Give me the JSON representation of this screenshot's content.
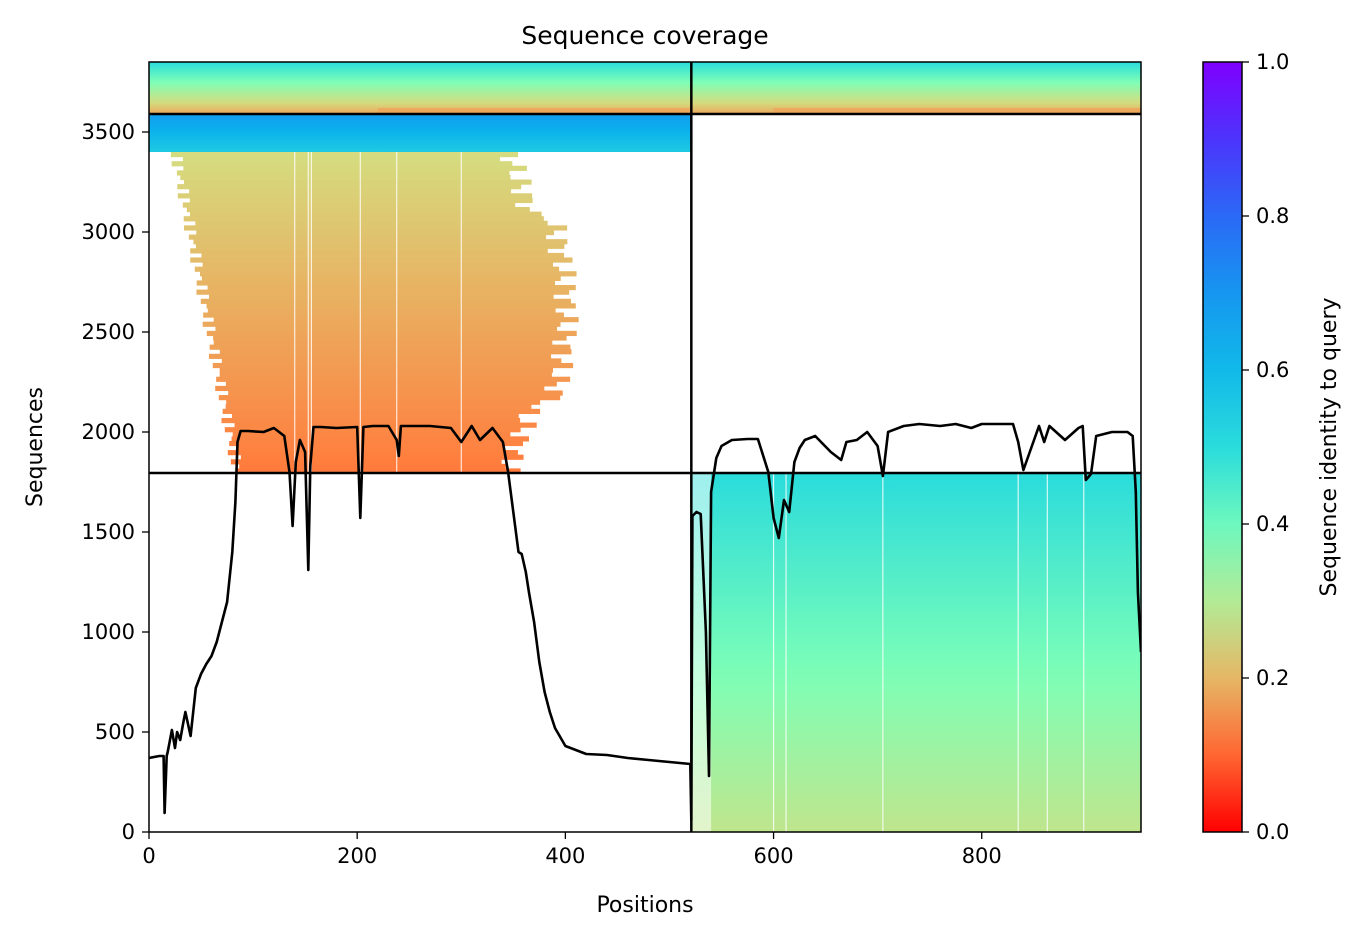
{
  "chart_data": {
    "type": "heatmap",
    "title": "Sequence coverage",
    "xlabel": "Positions",
    "ylabel": "Sequences",
    "xlim": [
      0,
      953
    ],
    "ylim": [
      0,
      3850
    ],
    "xticks": [
      0,
      200,
      400,
      600,
      800
    ],
    "yticks": [
      0,
      500,
      1000,
      1500,
      2000,
      2500,
      3000,
      3500
    ],
    "grid": false,
    "colorbar": {
      "label": "Sequence identity to query",
      "range": [
        0,
        1
      ],
      "ticks": [
        "0.0",
        "0.2",
        "0.4",
        "0.6",
        "0.8",
        "1.0"
      ],
      "colormap": "rainbow",
      "stops": [
        "#ff0000",
        "#ff7f3f",
        "#d4dd80",
        "#7effb6",
        "#2adcdc",
        "#0bb0ec",
        "#1e84f3",
        "#3f41fb",
        "#7f00ff"
      ]
    },
    "domain_boundary_position": 521,
    "chain_separators_sequences": [
      1795,
      3590
    ],
    "blocks": [
      {
        "x": [
          0,
          521
        ],
        "y": [
          3590,
          3850
        ],
        "identity_range": [
          0.15,
          0.5
        ],
        "description": "top-left band"
      },
      {
        "x": [
          521,
          953
        ],
        "y": [
          3590,
          3850
        ],
        "identity_range": [
          0.15,
          0.5
        ],
        "description": "top-right band"
      },
      {
        "x": [
          0,
          521
        ],
        "y": [
          3400,
          3590
        ],
        "identity_range": [
          0.55,
          0.7
        ],
        "description": "cyan band"
      },
      {
        "x": [
          20,
          521
        ],
        "y": [
          1795,
          3400
        ],
        "identity_range": [
          0.1,
          0.28
        ],
        "description": "left domain alignments"
      },
      {
        "x": [
          521,
          953
        ],
        "y": [
          0,
          1795
        ],
        "identity_range": [
          0.28,
          0.5
        ],
        "description": "right domain alignments"
      }
    ],
    "series": [
      {
        "color": "#000000",
        "x": [
          0,
          10,
          14,
          15,
          17,
          18,
          22,
          25,
          27,
          30,
          33,
          35,
          40,
          45,
          50,
          55,
          60,
          65,
          70,
          75,
          80,
          83,
          85,
          88,
          95,
          110,
          120,
          130,
          135,
          138,
          141,
          145,
          150,
          153,
          155,
          158,
          165,
          180,
          200,
          203,
          206,
          215,
          230,
          238,
          240,
          242,
          255,
          270,
          290,
          300,
          310,
          318,
          330,
          340,
          345,
          350,
          355,
          358,
          362,
          365,
          370,
          375,
          380,
          385,
          390,
          400,
          420,
          440,
          460,
          480,
          500,
          520,
          521,
          522,
          526,
          530,
          535,
          538,
          540,
          545,
          550,
          560,
          575,
          585,
          595,
          600,
          605,
          610,
          615,
          620,
          625,
          630,
          640,
          655,
          665,
          670,
          680,
          690,
          700,
          705,
          710,
          725,
          740,
          760,
          775,
          790,
          800,
          810,
          830,
          835,
          840,
          855,
          860,
          865,
          880,
          893,
          897,
          900,
          905,
          910,
          925,
          940,
          945,
          948,
          950,
          953
        ],
        "y": [
          370,
          380,
          380,
          95,
          380,
          400,
          510,
          420,
          500,
          460,
          550,
          600,
          480,
          720,
          790,
          840,
          880,
          950,
          1050,
          1150,
          1400,
          1650,
          1950,
          2005,
          2005,
          2000,
          2020,
          1980,
          1800,
          1530,
          1850,
          1960,
          1900,
          1310,
          1830,
          2025,
          2025,
          2020,
          2025,
          1570,
          2025,
          2030,
          2030,
          1960,
          1880,
          2030,
          2030,
          2030,
          2020,
          1950,
          2030,
          1960,
          2020,
          1950,
          1800,
          1600,
          1400,
          1390,
          1300,
          1200,
          1050,
          850,
          700,
          600,
          520,
          430,
          390,
          385,
          370,
          360,
          350,
          340,
          60,
          1580,
          1600,
          1590,
          1000,
          280,
          1700,
          1870,
          1930,
          1960,
          1965,
          1965,
          1800,
          1570,
          1470,
          1660,
          1600,
          1850,
          1920,
          1960,
          1980,
          1900,
          1860,
          1950,
          1960,
          2000,
          1930,
          1780,
          2000,
          2030,
          2040,
          2030,
          2040,
          2020,
          2040,
          2040,
          2040,
          1950,
          1810,
          2030,
          1950,
          2030,
          1960,
          2020,
          2030,
          1760,
          1790,
          1980,
          2000,
          2000,
          1980,
          1700,
          1200,
          900
        ]
      }
    ]
  }
}
